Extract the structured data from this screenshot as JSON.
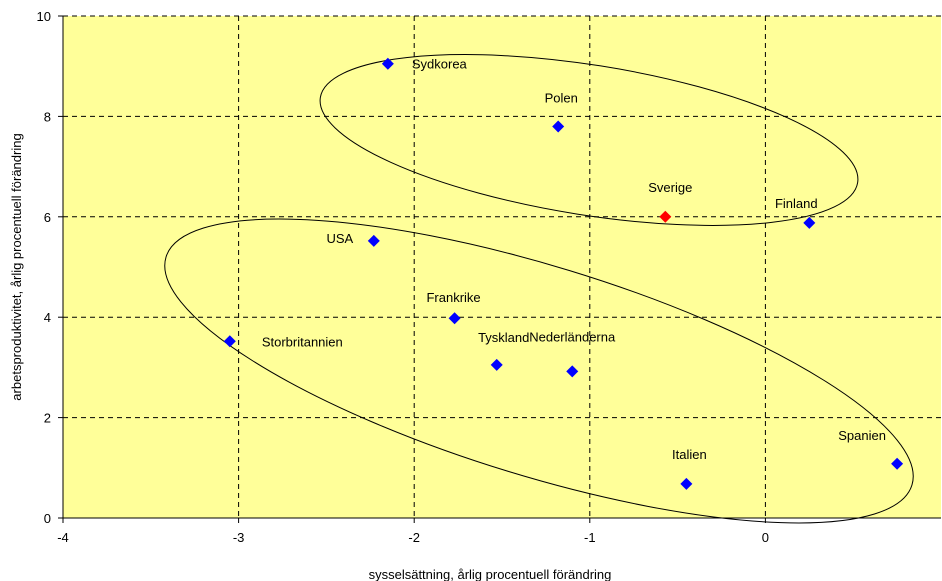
{
  "chart_data": {
    "type": "scatter",
    "title": "",
    "xlabel": "sysselsättning, årlig procentuell förändring",
    "ylabel": "arbetsproduktivitet, årlig procentuell förändring",
    "xlim": [
      -4,
      1
    ],
    "ylim": [
      0,
      10
    ],
    "xticks": [
      -4,
      -3,
      -2,
      -1,
      0
    ],
    "yticks": [
      0,
      2,
      4,
      6,
      8,
      10
    ],
    "grid": true,
    "plot_background": "#ffff99",
    "points": [
      {
        "label": "Sydkorea",
        "x": -2.15,
        "y": 9.05,
        "color": "#0000ff"
      },
      {
        "label": "Polen",
        "x": -1.18,
        "y": 7.8,
        "color": "#0000ff"
      },
      {
        "label": "Sverige",
        "x": -0.57,
        "y": 6.0,
        "color": "#ff0000"
      },
      {
        "label": "Finland",
        "x": 0.25,
        "y": 5.88,
        "color": "#0000ff"
      },
      {
        "label": "USA",
        "x": -2.23,
        "y": 5.52,
        "color": "#0000ff"
      },
      {
        "label": "Frankrike",
        "x": -1.77,
        "y": 3.98,
        "color": "#0000ff"
      },
      {
        "label": "Storbritannien",
        "x": -3.05,
        "y": 3.52,
        "color": "#0000ff"
      },
      {
        "label": "Tyskland",
        "x": -1.53,
        "y": 3.05,
        "color": "#0000ff"
      },
      {
        "label": "Nederländerna",
        "x": -1.1,
        "y": 2.92,
        "color": "#0000ff"
      },
      {
        "label": "Italien",
        "x": -0.45,
        "y": 0.68,
        "color": "#0000ff"
      },
      {
        "label": "Spanien",
        "x": 0.75,
        "y": 1.08,
        "color": "#0000ff"
      }
    ]
  }
}
